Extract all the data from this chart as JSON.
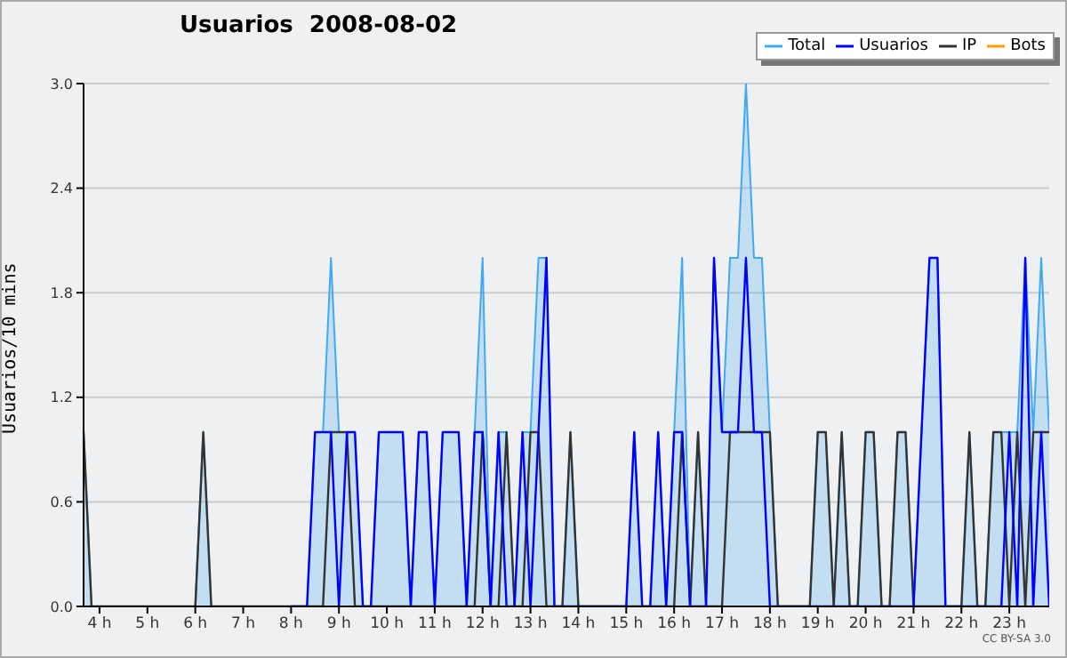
{
  "chart_data": {
    "type": "line",
    "title": "Usuarios  2008-08-02",
    "ylabel": "Usuarios/10 mins",
    "annotations": [
      "CC BY-SA 3.0"
    ],
    "x": [
      3.6667,
      3.8333,
      4,
      4.1667,
      4.3333,
      4.5,
      4.6667,
      4.8333,
      5,
      5.1667,
      5.3333,
      5.5,
      5.6667,
      5.8333,
      6,
      6.1667,
      6.3333,
      6.5,
      6.6667,
      6.8333,
      7,
      7.1667,
      7.3333,
      7.5,
      7.6667,
      7.8333,
      8,
      8.1667,
      8.3333,
      8.5,
      8.6667,
      8.8333,
      9,
      9.1667,
      9.3333,
      9.5,
      9.6667,
      9.8333,
      10,
      10.1667,
      10.3333,
      10.5,
      10.6667,
      10.8333,
      11,
      11.1667,
      11.3333,
      11.5,
      11.6667,
      11.8333,
      12,
      12.1667,
      12.3333,
      12.5,
      12.6667,
      12.8333,
      13,
      13.1667,
      13.3333,
      13.5,
      13.6667,
      13.8333,
      14,
      14.1667,
      14.3333,
      14.5,
      14.6667,
      14.8333,
      15,
      15.1667,
      15.3333,
      15.5,
      15.6667,
      15.8333,
      16,
      16.1667,
      16.3333,
      16.5,
      16.6667,
      16.8333,
      17,
      17.1667,
      17.3333,
      17.5,
      17.6667,
      17.8333,
      18,
      18.1667,
      18.3333,
      18.5,
      18.6667,
      18.8333,
      19,
      19.1667,
      19.3333,
      19.5,
      19.6667,
      19.8333,
      20,
      20.1667,
      20.3333,
      20.5,
      20.6667,
      20.8333,
      21,
      21.1667,
      21.3333,
      21.5,
      21.6667,
      21.8333,
      22,
      22.1667,
      22.3333,
      22.5,
      22.6667,
      22.8333,
      23,
      23.1667,
      23.3333,
      23.5,
      23.6667,
      23.8333
    ],
    "series": [
      {
        "name": "Total",
        "type": "area",
        "color": "#3fa9f5",
        "values": [
          1,
          0,
          0,
          0,
          0,
          0,
          0,
          0,
          0,
          0,
          0,
          0,
          0,
          0,
          0,
          1,
          0,
          0,
          0,
          0,
          0,
          0,
          0,
          0,
          0,
          0,
          0,
          0,
          0,
          1,
          1,
          2,
          1,
          1,
          1,
          0,
          0,
          1,
          1,
          1,
          1,
          0,
          1,
          1,
          0,
          1,
          1,
          1,
          0,
          1,
          2,
          0,
          1,
          1,
          0,
          1,
          1,
          2,
          2,
          0,
          0,
          1,
          0,
          0,
          0,
          0,
          0,
          0,
          0,
          1,
          0,
          0,
          1,
          0,
          1,
          2,
          0,
          1,
          0,
          2,
          1,
          2,
          2,
          3,
          2,
          2,
          1,
          0,
          0,
          0,
          0,
          0,
          1,
          1,
          0,
          1,
          0,
          0,
          1,
          1,
          0,
          0,
          1,
          1,
          0,
          1,
          2,
          2,
          0,
          0,
          0,
          1,
          0,
          0,
          1,
          1,
          1,
          1,
          2,
          1,
          2,
          1
        ]
      },
      {
        "name": "Usuarios",
        "type": "line",
        "color": "#0000ff",
        "values": [
          null,
          null,
          null,
          null,
          null,
          null,
          null,
          null,
          null,
          null,
          null,
          null,
          null,
          null,
          null,
          null,
          null,
          null,
          null,
          null,
          null,
          null,
          null,
          null,
          null,
          null,
          0,
          0,
          0,
          1,
          1,
          1,
          0,
          1,
          1,
          0,
          0,
          1,
          1,
          1,
          1,
          0,
          1,
          1,
          0,
          1,
          1,
          1,
          0,
          1,
          1,
          0,
          1,
          0,
          0,
          1,
          0,
          1,
          2,
          0,
          0,
          0,
          0,
          0,
          0,
          0,
          0,
          0,
          0,
          1,
          0,
          0,
          1,
          0,
          1,
          1,
          0,
          0,
          0,
          2,
          1,
          1,
          1,
          2,
          1,
          1,
          0,
          0,
          0,
          0,
          0,
          0,
          0,
          0,
          0,
          0,
          0,
          0,
          0,
          0,
          0,
          0,
          0,
          0,
          0,
          1,
          2,
          2,
          0,
          0,
          0,
          0,
          0,
          0,
          0,
          0,
          1,
          0,
          2,
          0,
          1,
          0
        ]
      },
      {
        "name": "IP",
        "type": "line",
        "color": "#333333",
        "values": [
          1,
          0,
          0,
          0,
          0,
          0,
          0,
          0,
          0,
          0,
          0,
          0,
          0,
          0,
          0,
          1,
          0,
          0,
          0,
          0,
          0,
          0,
          0,
          0,
          0,
          0,
          0,
          0,
          0,
          0,
          0,
          1,
          1,
          1,
          0,
          0,
          0,
          0,
          0,
          0,
          0,
          0,
          0,
          0,
          0,
          0,
          0,
          0,
          0,
          0,
          1,
          0,
          0,
          1,
          0,
          0,
          1,
          1,
          0,
          0,
          0,
          1,
          0,
          0,
          0,
          0,
          0,
          0,
          0,
          0,
          0,
          0,
          0,
          0,
          0,
          1,
          0,
          1,
          0,
          0,
          0,
          1,
          1,
          1,
          1,
          1,
          1,
          0,
          0,
          0,
          0,
          0,
          1,
          1,
          0,
          1,
          0,
          0,
          1,
          1,
          0,
          0,
          1,
          1,
          0,
          0,
          0,
          0,
          0,
          0,
          0,
          1,
          0,
          0,
          1,
          1,
          0,
          1,
          0,
          1,
          1,
          1
        ]
      },
      {
        "name": "Bots",
        "type": "line",
        "color": "#ff9900",
        "values": [
          null,
          null,
          null,
          null,
          null,
          null,
          null,
          null,
          null,
          null,
          null,
          null,
          null,
          null,
          null,
          null,
          null,
          null,
          null,
          null,
          null,
          null,
          null,
          null,
          null,
          null,
          null,
          null,
          null,
          null,
          null,
          null,
          null,
          null,
          null,
          null,
          null,
          null,
          null,
          null,
          null,
          null,
          null,
          null,
          null,
          null,
          null,
          null,
          null,
          null,
          null,
          null,
          null,
          null,
          null,
          null,
          null,
          null,
          null,
          null,
          null,
          null,
          null,
          null,
          null,
          null,
          null,
          null,
          null,
          null,
          null,
          null,
          null,
          null,
          null,
          null,
          null,
          null,
          null,
          null,
          null,
          null,
          null,
          null,
          null,
          null,
          null,
          null,
          null,
          null,
          null,
          null,
          null,
          null,
          null,
          null,
          null,
          null,
          null,
          null,
          null,
          null,
          null,
          null,
          null,
          null,
          null,
          null,
          null,
          null,
          null,
          null,
          null,
          null,
          null,
          null,
          null,
          null,
          null,
          null,
          null,
          null
        ]
      }
    ],
    "xlim": [
      3.6667,
      23.8333
    ],
    "xticks": [
      {
        "value": 4,
        "label": "4 h"
      },
      {
        "value": 5,
        "label": "5 h"
      },
      {
        "value": 6,
        "label": "6 h"
      },
      {
        "value": 7,
        "label": "7 h"
      },
      {
        "value": 8,
        "label": "8 h"
      },
      {
        "value": 9,
        "label": "9 h"
      },
      {
        "value": 10,
        "label": "10 h"
      },
      {
        "value": 11,
        "label": "11 h"
      },
      {
        "value": 12,
        "label": "12 h"
      },
      {
        "value": 13,
        "label": "13 h"
      },
      {
        "value": 14,
        "label": "14 h"
      },
      {
        "value": 15,
        "label": "15 h"
      },
      {
        "value": 16,
        "label": "16 h"
      },
      {
        "value": 17,
        "label": "17 h"
      },
      {
        "value": 18,
        "label": "18 h"
      },
      {
        "value": 19,
        "label": "19 h"
      },
      {
        "value": 20,
        "label": "20 h"
      },
      {
        "value": 21,
        "label": "21 h"
      },
      {
        "value": 22,
        "label": "22 h"
      },
      {
        "value": 23,
        "label": "23 h"
      }
    ],
    "ylim": [
      0,
      3
    ],
    "yticks": [
      {
        "value": 0,
        "label": "0.0"
      },
      {
        "value": 0.6,
        "label": "0.6"
      },
      {
        "value": 1.2,
        "label": "1.2"
      },
      {
        "value": 1.8,
        "label": "1.8"
      },
      {
        "value": 2.4,
        "label": "2.4"
      },
      {
        "value": 3,
        "label": "3.0"
      }
    ],
    "grid": "y",
    "legend": "top right"
  }
}
